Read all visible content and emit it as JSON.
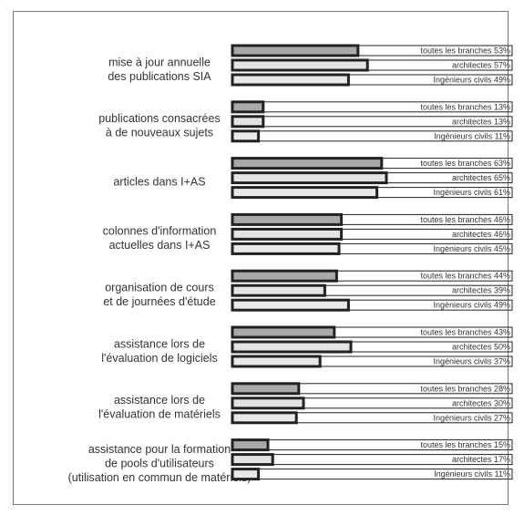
{
  "chart_data": {
    "type": "bar",
    "orientation": "horizontal",
    "title": "",
    "xlabel": "",
    "ylabel": "",
    "xlim": [
      0,
      100
    ],
    "grid": false,
    "series": [
      {
        "name": "toutes les branches",
        "color": "#a9a9a9"
      },
      {
        "name": "architectes",
        "color": "#e3e3e3"
      },
      {
        "name": "Ingénieurs civils",
        "color": "#e8e8e8"
      }
    ],
    "groups": [
      {
        "label": [
          "mise à jour annuelle",
          "des publications SIA"
        ],
        "values": [
          53,
          57,
          49
        ]
      },
      {
        "label": [
          "publications consacrées",
          "à de nouveaux sujets"
        ],
        "values": [
          13,
          13,
          11
        ]
      },
      {
        "label": [
          "articles dans I+AS"
        ],
        "values": [
          63,
          65,
          61
        ]
      },
      {
        "label": [
          "colonnes d'information",
          "actuelles dans I+AS"
        ],
        "values": [
          46,
          46,
          45
        ]
      },
      {
        "label": [
          "organisation de cours",
          "et de journées d'étude"
        ],
        "values": [
          44,
          39,
          49
        ]
      },
      {
        "label": [
          "assistance lors de",
          "l'évaluation de logiciels"
        ],
        "values": [
          43,
          50,
          37
        ]
      },
      {
        "label": [
          "assistance lors de",
          "l'évaluation de matériels"
        ],
        "values": [
          28,
          30,
          27
        ]
      },
      {
        "label": [
          "assistance pour la formation",
          "de pools d'utilisateurs",
          "(utilisation en commun de matériels)"
        ],
        "values": [
          15,
          17,
          11
        ]
      }
    ],
    "value_suffix": "%"
  }
}
